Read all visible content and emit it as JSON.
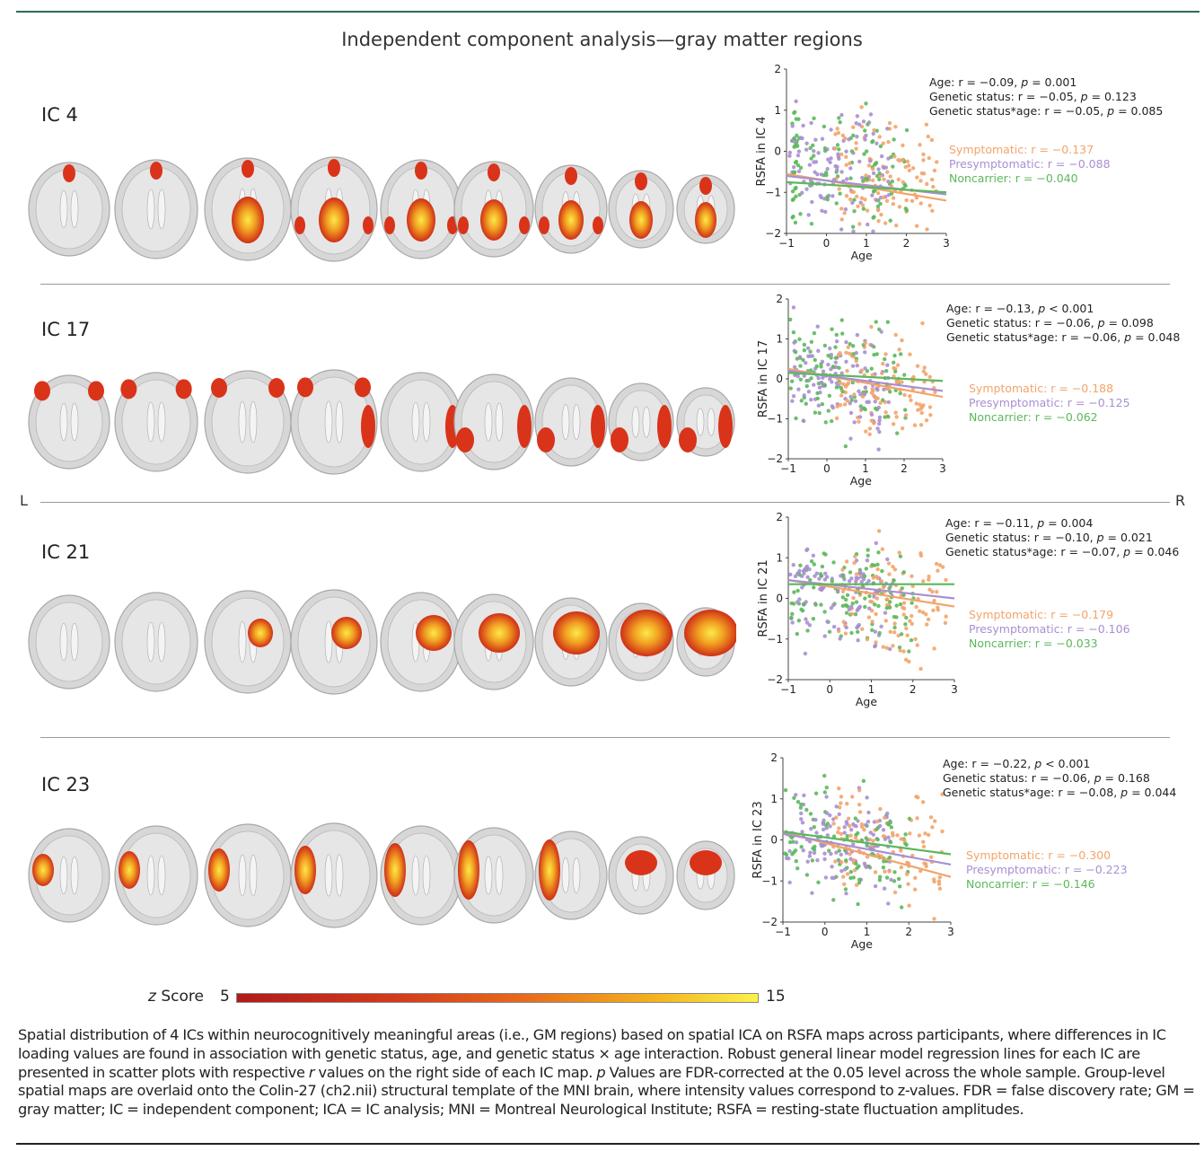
{
  "figure_title": "Independent component analysis—gray matter regions",
  "side_labels": {
    "left": "L",
    "right": "R"
  },
  "panels": [
    {
      "ic": "IC 4",
      "ylabel": "RSFA in IC 4",
      "xlabel": "Age",
      "stats": [
        {
          "pre": "Age: r = −0.09, ",
          "p": "p",
          "post": " = 0.001"
        },
        {
          "pre": "Genetic status: r = −0.05, ",
          "p": "p",
          "post": " = 0.123"
        },
        {
          "pre": "Genetic status*age: r = −0.05, ",
          "p": "p",
          "post": " = 0.085"
        }
      ],
      "legend": {
        "symptomatic": "Symptomatic: r = −0.137",
        "presymptomatic": "Presymptomatic: r = −0.088",
        "noncarrier": "Noncarrier: r = −0.040"
      }
    },
    {
      "ic": "IC 17",
      "ylabel": "RSFA in IC 17",
      "xlabel": "Age",
      "stats": [
        {
          "pre": "Age: r = −0.13, ",
          "p": "p",
          "post": " < 0.001"
        },
        {
          "pre": "Genetic status: r = −0.06, ",
          "p": "p",
          "post": " = 0.098"
        },
        {
          "pre": "Genetic status*age: r = −0.06, ",
          "p": "p",
          "post": " = 0.048"
        }
      ],
      "legend": {
        "symptomatic": "Symptomatic: r = −0.188",
        "presymptomatic": "Presymptomatic: r = −0.125",
        "noncarrier": "Noncarrier: r = −0.062"
      }
    },
    {
      "ic": "IC 21",
      "ylabel": "RSFA in IC 21",
      "xlabel": "Age",
      "stats": [
        {
          "pre": "Age: r = −0.11, ",
          "p": "p",
          "post": " = 0.004"
        },
        {
          "pre": "Genetic status: r = −0.10, ",
          "p": "p",
          "post": " = 0.021"
        },
        {
          "pre": "Genetic status*age: r = −0.07, ",
          "p": "p",
          "post": " = 0.046"
        }
      ],
      "legend": {
        "symptomatic": "Symptomatic: r = −0.179",
        "presymptomatic": "Presymptomatic: r = −0.106",
        "noncarrier": "Noncarrier: r = −0.033"
      }
    },
    {
      "ic": "IC 23",
      "ylabel": "RSFA in IC 23",
      "xlabel": "Age",
      "stats": [
        {
          "pre": "Age: r = −0.22, ",
          "p": "p",
          "post": " < 0.001"
        },
        {
          "pre": "Genetic status: r = −0.06, ",
          "p": "p",
          "post": " = 0.168"
        },
        {
          "pre": "Genetic status*age: r = −0.08, ",
          "p": "p",
          "post": " = 0.044"
        }
      ],
      "legend": {
        "symptomatic": "Symptomatic: r = −0.300",
        "presymptomatic": "Presymptomatic: r = −0.223",
        "noncarrier": "Noncarrier: r = −0.146"
      }
    }
  ],
  "colorbar": {
    "label_italic": "z",
    "label": " Score",
    "min": "5",
    "max": "15"
  },
  "caption_parts": [
    {
      "t": "Spatial distribution of 4 ICs within neurocognitively meaningful areas (i.e., GM regions) based on spatial ICA on RSFA maps across participants, where differences in IC loading values are found in association with genetic status, age, and genetic status × age interaction. Robust general linear model regression lines for each IC are presented in scatter plots with respective "
    },
    {
      "t": "r",
      "i": true
    },
    {
      "t": " values on the right side of each IC map. "
    },
    {
      "t": "p",
      "i": true
    },
    {
      "t": " Values are FDR-corrected at the 0.05 level across the whole sample. Group-level spatial maps are overlaid onto the Colin-27 (ch2.nii) structural template of the MNI brain, where intensity values correspond to z-values. FDR = false discovery rate; GM = gray matter; IC = independent component; ICA = IC analysis; MNI = Montreal Neurological Institute; RSFA = resting-state fluctuation amplitudes."
    }
  ],
  "colors": {
    "symptomatic": "#f2a46a",
    "presymptomatic": "#a98fd1",
    "noncarrier": "#5cb85c",
    "accent_rule": "#2a6e55"
  },
  "chart_data": [
    {
      "type": "scatter",
      "title": "",
      "xlabel": "Age",
      "ylabel": "RSFA in IC 4",
      "xlim": [
        -1,
        3
      ],
      "ylim": [
        -2,
        2
      ],
      "xticks": [
        -1,
        0,
        1,
        2,
        3
      ],
      "yticks": [
        -2,
        -1,
        0,
        1,
        2
      ],
      "series": [
        {
          "name": "Symptomatic: r = −0.137",
          "fit": {
            "x": [
              -1,
              3
            ],
            "y": [
              -0.55,
              -1.2
            ]
          }
        },
        {
          "name": "Presymptomatic: r = −0.088",
          "fit": {
            "x": [
              -1,
              3
            ],
            "y": [
              -0.6,
              -1.05
            ]
          }
        },
        {
          "name": "Noncarrier: r = −0.040",
          "fit": {
            "x": [
              -1,
              3
            ],
            "y": [
              -0.75,
              -1.0
            ]
          }
        }
      ]
    },
    {
      "type": "scatter",
      "title": "",
      "xlabel": "Age",
      "ylabel": "RSFA in IC 17",
      "xlim": [
        -1,
        3
      ],
      "ylim": [
        -2,
        2
      ],
      "xticks": [
        -1,
        0,
        1,
        2,
        3
      ],
      "yticks": [
        -2,
        -1,
        0,
        1,
        2
      ],
      "series": [
        {
          "name": "Symptomatic: r = −0.188",
          "fit": {
            "x": [
              -1,
              3
            ],
            "y": [
              0.25,
              -0.45
            ]
          }
        },
        {
          "name": "Presymptomatic: r = −0.125",
          "fit": {
            "x": [
              -1,
              3
            ],
            "y": [
              0.2,
              -0.3
            ]
          }
        },
        {
          "name": "Noncarrier: r = −0.062",
          "fit": {
            "x": [
              -1,
              3
            ],
            "y": [
              0.15,
              -0.05
            ]
          }
        }
      ]
    },
    {
      "type": "scatter",
      "title": "",
      "xlabel": "Age",
      "ylabel": "RSFA in IC 21",
      "xlim": [
        -1,
        3
      ],
      "ylim": [
        -2,
        2
      ],
      "xticks": [
        -1,
        0,
        1,
        2,
        3
      ],
      "yticks": [
        -2,
        -1,
        0,
        1,
        2
      ],
      "series": [
        {
          "name": "Symptomatic: r = −0.179",
          "fit": {
            "x": [
              -1,
              3
            ],
            "y": [
              0.45,
              -0.2
            ]
          }
        },
        {
          "name": "Presymptomatic: r = −0.106",
          "fit": {
            "x": [
              -1,
              3
            ],
            "y": [
              0.45,
              0.0
            ]
          }
        },
        {
          "name": "Noncarrier: r = −0.033",
          "fit": {
            "x": [
              -1,
              3
            ],
            "y": [
              0.35,
              0.35
            ]
          }
        }
      ]
    },
    {
      "type": "scatter",
      "title": "",
      "xlabel": "Age",
      "ylabel": "RSFA in IC 23",
      "xlim": [
        -1,
        3
      ],
      "ylim": [
        -2,
        2
      ],
      "xticks": [
        -1,
        0,
        1,
        2,
        3
      ],
      "yticks": [
        -2,
        -1,
        0,
        1,
        2
      ],
      "series": [
        {
          "name": "Symptomatic: r = −0.300",
          "fit": {
            "x": [
              -1,
              3
            ],
            "y": [
              0.2,
              -0.9
            ]
          }
        },
        {
          "name": "Presymptomatic: r = −0.223",
          "fit": {
            "x": [
              -1,
              3
            ],
            "y": [
              0.15,
              -0.6
            ]
          }
        },
        {
          "name": "Noncarrier: r = −0.146",
          "fit": {
            "x": [
              -1,
              3
            ],
            "y": [
              0.2,
              -0.35
            ]
          }
        }
      ]
    }
  ]
}
